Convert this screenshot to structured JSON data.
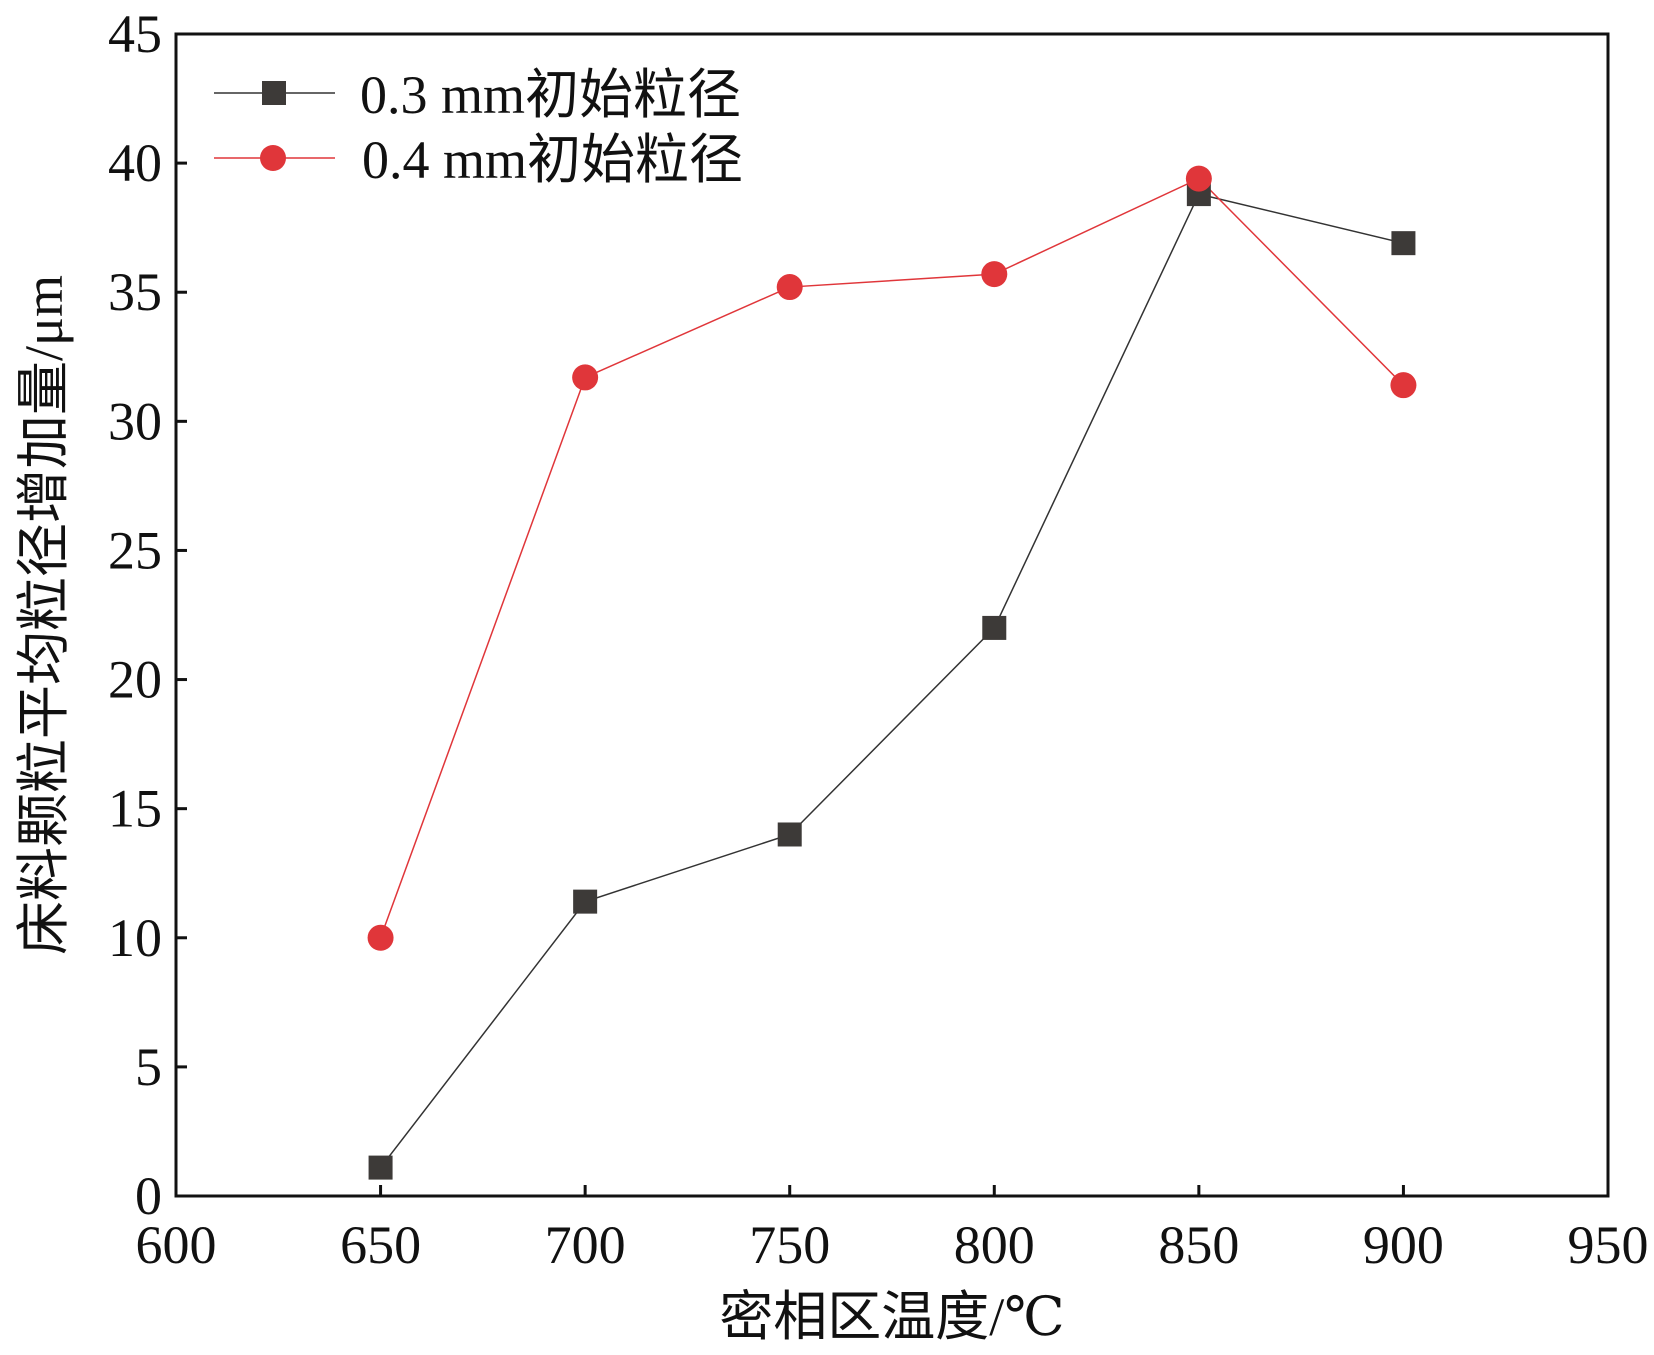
{
  "chart_data": {
    "type": "line",
    "title": "",
    "xlabel": "密相区温度/℃",
    "ylabel": "床料颗粒平均粒径增加量/μm",
    "xlim": [
      600,
      950
    ],
    "ylim": [
      0,
      45
    ],
    "xticks": [
      600,
      650,
      700,
      750,
      800,
      850,
      900,
      950
    ],
    "yticks": [
      0,
      5,
      10,
      15,
      20,
      25,
      30,
      35,
      40,
      45
    ],
    "grid": false,
    "legend_position": "top-left",
    "x": [
      650,
      700,
      750,
      800,
      850,
      900
    ],
    "series": [
      {
        "name": "0.3 mm初始粒径",
        "marker": "square",
        "color": "#3d3a38",
        "line_color": "#333333",
        "values": [
          1.1,
          11.4,
          14.0,
          22.0,
          38.8,
          36.9
        ]
      },
      {
        "name": "0.4 mm初始粒径",
        "marker": "circle",
        "color": "#e0363a",
        "line_color": "#e0363a",
        "values": [
          10.0,
          31.7,
          35.2,
          35.7,
          39.4,
          31.4
        ]
      }
    ]
  }
}
